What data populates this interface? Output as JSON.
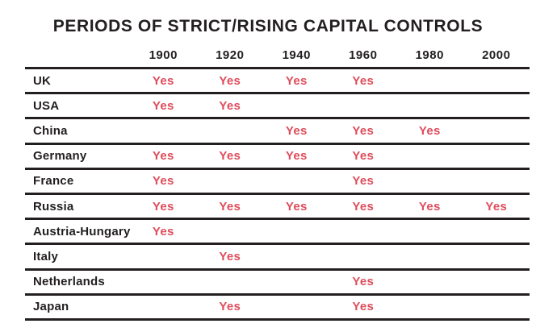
{
  "chart_data": {
    "type": "table",
    "title": "PERIODS OF STRICT/RISING CAPITAL CONTROLS",
    "year_columns": [
      "1900",
      "1920",
      "1940",
      "1960",
      "1980",
      "2000"
    ],
    "yes_label": "Yes",
    "rows": [
      {
        "country": "UK",
        "values": [
          "Yes",
          "Yes",
          "Yes",
          "Yes",
          "",
          ""
        ]
      },
      {
        "country": "USA",
        "values": [
          "Yes",
          "Yes",
          "",
          "",
          "",
          ""
        ]
      },
      {
        "country": "China",
        "values": [
          "",
          "",
          "Yes",
          "Yes",
          "Yes",
          ""
        ]
      },
      {
        "country": "Germany",
        "values": [
          "Yes",
          "Yes",
          "Yes",
          "Yes",
          "",
          ""
        ]
      },
      {
        "country": "France",
        "values": [
          "Yes",
          "",
          "",
          "Yes",
          "",
          ""
        ]
      },
      {
        "country": "Russia",
        "values": [
          "Yes",
          "Yes",
          "Yes",
          "Yes",
          "Yes",
          "Yes"
        ]
      },
      {
        "country": "Austria-Hungary",
        "values": [
          "Yes",
          "",
          "",
          "",
          "",
          ""
        ]
      },
      {
        "country": "Italy",
        "values": [
          "",
          "Yes",
          "",
          "",
          "",
          ""
        ]
      },
      {
        "country": "Netherlands",
        "values": [
          "",
          "",
          "",
          "Yes",
          "",
          ""
        ]
      },
      {
        "country": "Japan",
        "values": [
          "",
          "Yes",
          "",
          "Yes",
          "",
          ""
        ]
      }
    ],
    "layout": {
      "grid": "horizontal-rules-only",
      "value_alignment": "center",
      "label_column_alignment": "left"
    }
  },
  "colors": {
    "yes_text": "#DE4C5B",
    "text_and_rules": "#231F20",
    "background": "#FFFFFF"
  }
}
